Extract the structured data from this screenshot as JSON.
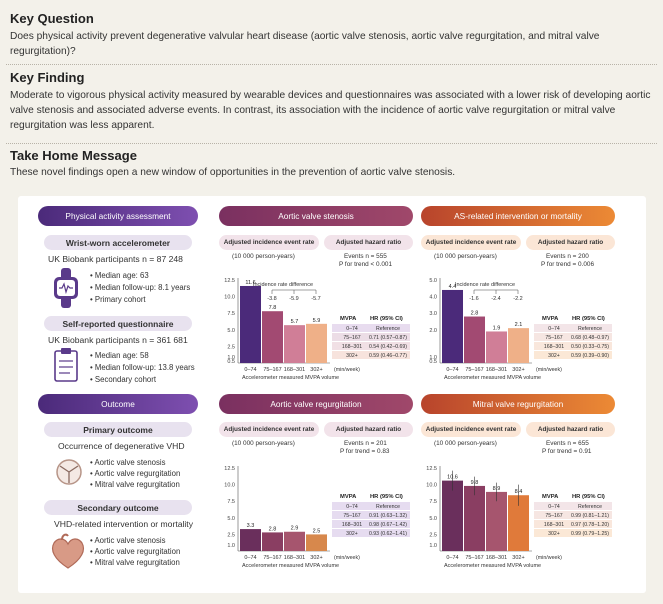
{
  "key_question": {
    "heading": "Key Question",
    "text": "Does physical activity prevent degenerative valvular heart disease (aortic valve stenosis, aortic valve regurgitation, and mitral valve regurgitation)?"
  },
  "key_finding": {
    "heading": "Key Finding",
    "text": "Moderate to vigorous physical activity measured by wearable devices and questionnaires was associated with a lower risk of developing aortic valve stenosis and associated adverse events. In contrast, its association with the incidence of aortic valve regurgitation or mitral valve regurgitation was less apparent."
  },
  "take_home": {
    "heading": "Take Home Message",
    "text": "These novel findings open a new window of opportunities in the prevention of aortic valve stenosis."
  },
  "left": {
    "pa_title": "Physical activity assessment",
    "wrist": {
      "title": "Wrist-worn accelerometer",
      "n": "UK Biobank participants n = 87 248",
      "b1": "Median age: 63",
      "b2": "Median follow-up: 8.1 years",
      "b3": "Primary cohort"
    },
    "self": {
      "title": "Self-reported questionnaire",
      "n": "UK Biobank participants n = 361 681",
      "b1": "Median age: 58",
      "b2": "Median follow-up: 13.8 years",
      "b3": "Secondary cohort"
    },
    "outcome_title": "Outcome",
    "primary": {
      "title": "Primary outcome",
      "desc": "Occurrence of degenerative VHD",
      "b1": "Aortic valve stenosis",
      "b2": "Aortic valve regurgitation",
      "b3": "Mitral valve regurgitation"
    },
    "secondary": {
      "title": "Secondary outcome",
      "desc": "VHD-related intervention or mortality",
      "b1": "Aortic valve stenosis",
      "b2": "Aortic valve regurgitation",
      "b3": "Mitral valve regurgitation"
    }
  },
  "common": {
    "inc_rate": "Adjusted incidence event rate",
    "per": "(10 000 person-years)",
    "adj_hr": "Adjusted hazard ratio",
    "xlabel": "Accelerometer measured MVPA volume",
    "unit": "(min/week)",
    "mvpa": "MVPA",
    "hr_ci": "HR (95% CI)",
    "ird": "Incidence rate difference"
  },
  "panels": {
    "as": {
      "title": "Aortic valve stenosis",
      "events": "Events n = 555",
      "ptrend": "P for trend < 0.001"
    },
    "asi": {
      "title": "AS-related intervention or mortality",
      "events": "Events n = 200",
      "ptrend": "P for trend = 0.006"
    },
    "ar": {
      "title": "Aortic valve regurgitation",
      "events": "Events n = 201",
      "ptrend": "P for trend = 0.83"
    },
    "mr": {
      "title": "Mitral valve regurgitation",
      "events": "Events n = 655",
      "ptrend": "P for trend = 0.91"
    }
  },
  "chart_data": [
    {
      "type": "bar",
      "title": "Aortic valve stenosis",
      "categories": [
        "0–74",
        "75–167",
        "168–301",
        "302+"
      ],
      "values": [
        11.6,
        7.8,
        5.7,
        5.9
      ],
      "ylim": [
        0,
        12.5
      ],
      "yticks": [
        "12.5",
        "10.0",
        "7.5",
        "5.0",
        "2.5",
        "1.0",
        "0.5"
      ],
      "data_labels": [
        "11.6",
        "7.8",
        "5.7",
        "5.9"
      ],
      "diffs": [
        "-3.8",
        "-5.9",
        "-5.7"
      ],
      "hr_table": [
        [
          "0–74",
          "Reference"
        ],
        [
          "75–167",
          "0.71 (0.57–0.87)"
        ],
        [
          "168–301",
          "0.54 (0.42–0.69)"
        ],
        [
          "302+",
          "0.59 (0.46–0.77)"
        ]
      ],
      "colors": [
        "#4b2a7a",
        "#a24a72",
        "#d07e97",
        "#efb088"
      ]
    },
    {
      "type": "bar",
      "title": "AS-related intervention or mortality",
      "categories": [
        "0–74",
        "75–167",
        "168–301",
        "302+"
      ],
      "values": [
        4.4,
        2.8,
        1.9,
        2.1
      ],
      "ylim": [
        0,
        5
      ],
      "yticks": [
        "5.0",
        "4.0",
        "3.0",
        "2.0",
        "1.0",
        "0.5"
      ],
      "data_labels": [
        "4.4",
        "2.8",
        "1.9",
        "2.1"
      ],
      "diffs": [
        "-1.6",
        "-2.4",
        "-2.2"
      ],
      "hr_table": [
        [
          "0–74",
          "Reference"
        ],
        [
          "75–167",
          "0.68 (0.48–0.97)"
        ],
        [
          "168–301",
          "0.50 (0.33–0.75)"
        ],
        [
          "302+",
          "0.59 (0.39–0.90)"
        ]
      ],
      "colors": [
        "#4b2a7a",
        "#a24a72",
        "#d07e97",
        "#efb088"
      ]
    },
    {
      "type": "bar",
      "title": "Aortic valve regurgitation",
      "categories": [
        "0–74",
        "75–167",
        "168–301",
        "302+"
      ],
      "values": [
        3.3,
        2.8,
        2.9,
        2.5
      ],
      "ylim": [
        0,
        12.5
      ],
      "yticks": [
        "12.5",
        "10.0",
        "7.5",
        "5.0",
        "2.5",
        "1.0"
      ],
      "data_labels": [
        "3.3",
        "2.8",
        "2.9",
        "2.5"
      ],
      "hr_table": [
        [
          "0–74",
          "Reference"
        ],
        [
          "75–167",
          "0.91 (0.63–1.32)"
        ],
        [
          "168–301",
          "0.98 (0.67–1.42)"
        ],
        [
          "302+",
          "0.93 (0.62–1.41)"
        ]
      ],
      "colors": [
        "#6a2f5c",
        "#8a3e62",
        "#a6556e",
        "#d7884c"
      ]
    },
    {
      "type": "bar",
      "title": "Mitral valve regurgitation",
      "categories": [
        "0–74",
        "75–167",
        "168–301",
        "302+"
      ],
      "values": [
        10.6,
        9.8,
        8.9,
        8.4
      ],
      "ylim": [
        0,
        12.5
      ],
      "yticks": [
        "12.5",
        "10.0",
        "7.5",
        "5.0",
        "2.5",
        "1.0"
      ],
      "data_labels": [
        "10.6",
        "9.8",
        "8.9",
        "8.4"
      ],
      "hr_table": [
        [
          "0–74",
          "Reference"
        ],
        [
          "75–167",
          "0.99 (0.81–1.21)"
        ],
        [
          "168–301",
          "0.97 (0.78–1.20)"
        ],
        [
          "302+",
          "0.99 (0.79–1.25)"
        ]
      ],
      "colors": [
        "#6a2f5c",
        "#8a3e62",
        "#a6556e",
        "#e07a3a"
      ]
    }
  ]
}
